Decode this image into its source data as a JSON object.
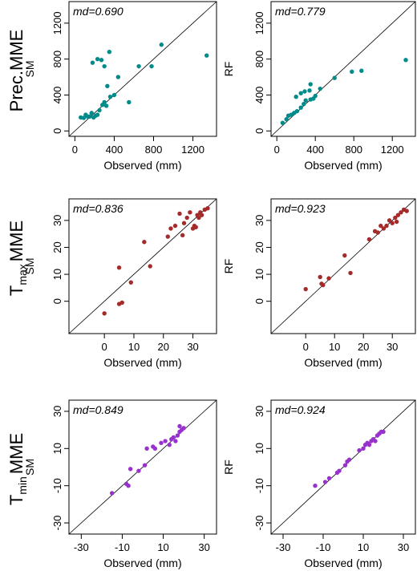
{
  "rows": [
    {
      "label_main": "Prec.",
      "label_sub": "",
      "label_tail": "MME"
    },
    {
      "label_main": "T",
      "label_sub": "max",
      "label_tail": "MME"
    },
    {
      "label_main": "T",
      "label_sub": "min",
      "label_tail": "MME"
    }
  ],
  "chart_data": [
    {
      "type": "scatter",
      "xlabel": "Observed (mm)",
      "ylabel": "SM",
      "annotation": "md=0.690",
      "color": "#008B8B",
      "xlim": [
        -60,
        1440
      ],
      "ylim": [
        -60,
        1440
      ],
      "xticks": [
        0,
        400,
        800,
        1200
      ],
      "yticks": [
        0,
        400,
        800,
        1200
      ],
      "diagonal": true,
      "points": [
        [
          60,
          150
        ],
        [
          90,
          145
        ],
        [
          110,
          180
        ],
        [
          130,
          160
        ],
        [
          150,
          160
        ],
        [
          170,
          200
        ],
        [
          190,
          150
        ],
        [
          210,
          170
        ],
        [
          230,
          180
        ],
        [
          250,
          230
        ],
        [
          280,
          290
        ],
        [
          300,
          320
        ],
        [
          320,
          280
        ],
        [
          330,
          500
        ],
        [
          360,
          380
        ],
        [
          400,
          400
        ],
        [
          300,
          720
        ],
        [
          180,
          760
        ],
        [
          230,
          800
        ],
        [
          270,
          790
        ],
        [
          350,
          880
        ],
        [
          440,
          600
        ],
        [
          550,
          320
        ],
        [
          650,
          720
        ],
        [
          780,
          720
        ],
        [
          880,
          960
        ],
        [
          1340,
          840
        ]
      ]
    },
    {
      "type": "scatter",
      "xlabel": "Observed (mm)",
      "ylabel": "RF",
      "annotation": "md=0.779",
      "color": "#008B8B",
      "xlim": [
        -60,
        1440
      ],
      "ylim": [
        -60,
        1440
      ],
      "xticks": [
        0,
        400,
        800,
        1200
      ],
      "yticks": [
        0,
        400,
        800,
        1200
      ],
      "diagonal": true,
      "points": [
        [
          60,
          90
        ],
        [
          100,
          130
        ],
        [
          120,
          170
        ],
        [
          150,
          180
        ],
        [
          180,
          200
        ],
        [
          210,
          220
        ],
        [
          250,
          260
        ],
        [
          280,
          300
        ],
        [
          300,
          340
        ],
        [
          350,
          350
        ],
        [
          380,
          360
        ],
        [
          400,
          390
        ],
        [
          200,
          380
        ],
        [
          250,
          420
        ],
        [
          290,
          440
        ],
        [
          340,
          450
        ],
        [
          350,
          520
        ],
        [
          450,
          470
        ],
        [
          600,
          590
        ],
        [
          780,
          660
        ],
        [
          880,
          670
        ],
        [
          1340,
          790
        ]
      ]
    },
    {
      "type": "scatter",
      "xlabel": "Observed (mm)",
      "ylabel": "SM",
      "annotation": "md=0.836",
      "color": "#A52A2A",
      "xlim": [
        -12,
        38
      ],
      "ylim": [
        -12,
        38
      ],
      "xticks": [
        0,
        10,
        20,
        30
      ],
      "yticks": [
        0,
        10,
        20,
        30
      ],
      "diagonal": true,
      "points": [
        [
          0,
          -4.5
        ],
        [
          5,
          -1
        ],
        [
          6,
          -0.5
        ],
        [
          5,
          12.5
        ],
        [
          9,
          7
        ],
        [
          13.5,
          22
        ],
        [
          15.5,
          13
        ],
        [
          21.5,
          24
        ],
        [
          22.5,
          27
        ],
        [
          24,
          28
        ],
        [
          25.5,
          32.5
        ],
        [
          26.5,
          24.5
        ],
        [
          27,
          29
        ],
        [
          28,
          31
        ],
        [
          29,
          33
        ],
        [
          30,
          27
        ],
        [
          31,
          27.5
        ],
        [
          31.5,
          32
        ],
        [
          32,
          31
        ],
        [
          32.5,
          33
        ],
        [
          33,
          32
        ],
        [
          34,
          34
        ],
        [
          35,
          34.5
        ],
        [
          30.5,
          28
        ]
      ]
    },
    {
      "type": "scatter",
      "xlabel": "Observed (mm)",
      "ylabel": "RF",
      "annotation": "md=0.923",
      "color": "#A52A2A",
      "xlim": [
        -12,
        38
      ],
      "ylim": [
        -12,
        38
      ],
      "xticks": [
        0,
        10,
        20,
        30
      ],
      "yticks": [
        0,
        10,
        20,
        30
      ],
      "diagonal": true,
      "points": [
        [
          0,
          4.5
        ],
        [
          5,
          9
        ],
        [
          5.5,
          6.5
        ],
        [
          6,
          6
        ],
        [
          8,
          8.5
        ],
        [
          13.5,
          17
        ],
        [
          15.5,
          10.5
        ],
        [
          22,
          23
        ],
        [
          24,
          26
        ],
        [
          25,
          25.5
        ],
        [
          26,
          28
        ],
        [
          27,
          27
        ],
        [
          28,
          28
        ],
        [
          29,
          30
        ],
        [
          30,
          29
        ],
        [
          31,
          31
        ],
        [
          32,
          32
        ],
        [
          33,
          33
        ],
        [
          34,
          34
        ],
        [
          35,
          33.5
        ],
        [
          31.5,
          29.5
        ]
      ]
    },
    {
      "type": "scatter",
      "xlabel": "Observed (mm)",
      "ylabel": "SM",
      "annotation": "md=0.849",
      "color": "#9932CC",
      "xlim": [
        -36,
        36
      ],
      "ylim": [
        -36,
        36
      ],
      "xticks": [
        -30,
        -10,
        10,
        30
      ],
      "yticks": [
        -30,
        -10,
        10,
        30
      ],
      "diagonal": true,
      "points": [
        [
          -15,
          -14
        ],
        [
          -8,
          -9
        ],
        [
          -7,
          -10
        ],
        [
          -6,
          -1
        ],
        [
          -2,
          -2
        ],
        [
          1,
          1
        ],
        [
          2,
          10
        ],
        [
          5,
          11
        ],
        [
          6,
          10
        ],
        [
          9,
          13
        ],
        [
          11,
          14
        ],
        [
          13,
          12
        ],
        [
          14,
          15
        ],
        [
          15,
          16
        ],
        [
          16,
          14
        ],
        [
          17,
          17
        ],
        [
          18,
          19
        ],
        [
          19,
          20
        ],
        [
          20,
          21
        ],
        [
          18,
          22
        ]
      ]
    },
    {
      "type": "scatter",
      "xlabel": "Observed (mm)",
      "ylabel": "RF",
      "annotation": "md=0.924",
      "color": "#9932CC",
      "xlim": [
        -36,
        36
      ],
      "ylim": [
        -36,
        36
      ],
      "xticks": [
        -30,
        -10,
        10,
        30
      ],
      "yticks": [
        -30,
        -10,
        10,
        30
      ],
      "diagonal": true,
      "points": [
        [
          -14,
          -10
        ],
        [
          -9,
          -8
        ],
        [
          -7,
          -6
        ],
        [
          -3,
          -3
        ],
        [
          -2,
          -2
        ],
        [
          1,
          1
        ],
        [
          2,
          3
        ],
        [
          3,
          4
        ],
        [
          8,
          9
        ],
        [
          10,
          10
        ],
        [
          11,
          12
        ],
        [
          12,
          13
        ],
        [
          13,
          12
        ],
        [
          14,
          14
        ],
        [
          15,
          15
        ],
        [
          16,
          14
        ],
        [
          17,
          17
        ],
        [
          18,
          18
        ],
        [
          19,
          19
        ],
        [
          20,
          19
        ]
      ]
    }
  ]
}
